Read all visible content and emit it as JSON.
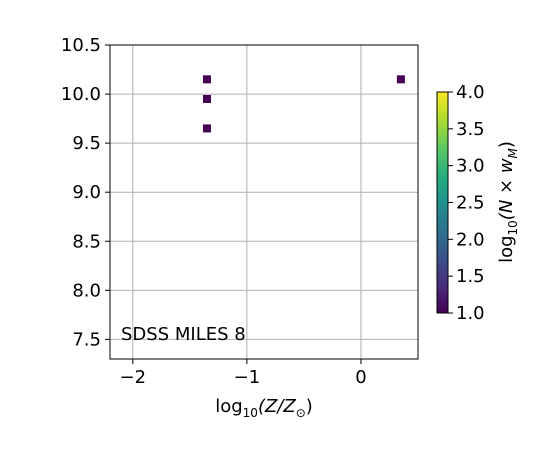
{
  "chart_data": {
    "type": "heatmap",
    "xlabel_base": "log",
    "xlabel_sub": "10",
    "xlabel_rest": "(Z/Z",
    "xlabel_odot": "⊙",
    "xlabel_close": ")",
    "ylabel": "",
    "annotation": "SDSS MILES 8",
    "xlim": [
      -2.2,
      0.5
    ],
    "ylim": [
      7.3,
      10.5
    ],
    "x_ticks": [
      -2,
      -1,
      0
    ],
    "x_tick_labels": [
      "−2",
      "−1",
      "0"
    ],
    "y_ticks": [
      7.5,
      8.0,
      8.5,
      9.0,
      9.5,
      10.0,
      10.5
    ],
    "y_tick_labels": [
      "7.5",
      "8.0",
      "8.5",
      "9.0",
      "9.5",
      "10.0",
      "10.5"
    ],
    "grid": true,
    "points": [
      {
        "x": -1.35,
        "y": 10.15,
        "value": 1.0
      },
      {
        "x": -1.35,
        "y": 9.95,
        "value": 1.0
      },
      {
        "x": -1.35,
        "y": 9.65,
        "value": 1.0
      },
      {
        "x": 0.35,
        "y": 10.15,
        "value": 1.0
      }
    ],
    "colorbar": {
      "cmap": "viridis",
      "range": [
        1.0,
        4.0
      ],
      "ticks": [
        1.0,
        1.5,
        2.0,
        2.5,
        3.0,
        3.5,
        4.0
      ],
      "tick_labels": [
        "1.0",
        "1.5",
        "2.0",
        "2.5",
        "3.0",
        "3.5",
        "4.0"
      ],
      "label_base": "log",
      "label_sub": "10",
      "label_rest": "(N × w",
      "label_msub": "M",
      "label_close": ")"
    }
  }
}
